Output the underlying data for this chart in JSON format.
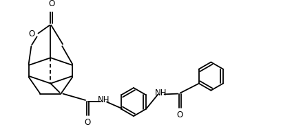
{
  "background": "#ffffff",
  "line_color": "#000000",
  "line_width": 1.3,
  "font_size": 8.5,
  "fig_width": 4.24,
  "fig_height": 2.04,
  "dpi": 100,
  "xlim": [
    0,
    10
  ],
  "ylim": [
    0,
    5
  ]
}
